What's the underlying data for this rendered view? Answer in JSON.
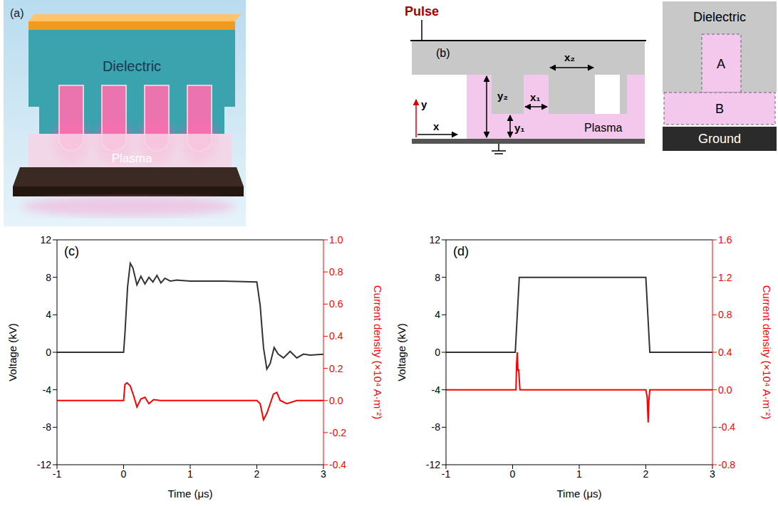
{
  "panels": {
    "a": {
      "label": "(a)",
      "body": "Dielectric",
      "glow": "Plasma"
    },
    "b": {
      "label": "(b)",
      "pulse": "Pulse",
      "arrow_x": "x",
      "arrow_y": "y",
      "y2": "y₂",
      "y1": "y₁",
      "x1": "x₁",
      "x2": "x₂",
      "region": "Plasma",
      "inset": {
        "top": "Dielectric",
        "upper": "A",
        "lower": "B",
        "bottom": "Ground"
      }
    }
  },
  "chart_data": [
    {
      "type": "line",
      "label": "(c)",
      "x_label": "Time (μs)",
      "y_label": "Voltage (kV)",
      "y2_label": "Current density  (×10⁴ A·m⁻²)",
      "xlim": [
        -1,
        3
      ],
      "xticks": [
        -1,
        0,
        1,
        2,
        3
      ],
      "ylim": [
        -12,
        12
      ],
      "yticks": [
        -12,
        -8,
        -4,
        0,
        4,
        8,
        12
      ],
      "y2lim": [
        -0.4,
        1.0
      ],
      "y2ticks": [
        -0.4,
        -0.2,
        {
          "value": 0,
          "label": "0.0"
        },
        0.2,
        0.4,
        0.6,
        0.8,
        {
          "value": 1.0,
          "label": "1.0"
        }
      ],
      "series": [
        {
          "color": "#333333",
          "x": [
            -1,
            -0.5,
            0,
            0.02,
            0.06,
            0.1,
            0.14,
            0.2,
            0.26,
            0.32,
            0.38,
            0.44,
            0.5,
            0.56,
            0.62,
            0.7,
            0.8,
            1.0,
            1.5,
            2.0,
            2.05,
            2.1,
            2.15,
            2.2,
            2.26,
            2.32,
            2.4,
            2.5,
            2.6,
            2.7,
            2.8,
            3.0
          ],
          "values": [
            0,
            0,
            0,
            2,
            7,
            9.5,
            9.0,
            7.2,
            8.1,
            7.3,
            8.0,
            7.5,
            8.2,
            7.4,
            7.9,
            7.6,
            7.7,
            7.6,
            7.6,
            7.5,
            5.0,
            0.5,
            -1.8,
            -1.2,
            0.5,
            -0.2,
            -0.6,
            0.1,
            -0.6,
            -0.2,
            -0.3,
            -0.2
          ]
        },
        {
          "color": "#ff0000",
          "axis": "y2",
          "x": [
            -1,
            0,
            0.02,
            0.05,
            0.1,
            0.15,
            0.2,
            0.26,
            0.32,
            0.38,
            0.45,
            0.55,
            0.7,
            2.0,
            2.05,
            2.1,
            2.15,
            2.2,
            2.25,
            2.3,
            2.35,
            2.45,
            2.6,
            3.0
          ],
          "values": [
            0,
            0,
            0.1,
            0.11,
            0.09,
            0.03,
            -0.04,
            0.01,
            0.02,
            -0.02,
            0.005,
            0,
            0,
            0,
            -0.02,
            -0.12,
            -0.08,
            -0.02,
            0.04,
            0.05,
            0.0,
            -0.02,
            0,
            0
          ]
        }
      ]
    },
    {
      "type": "line",
      "label": "(d)",
      "x_label": "Time (μs)",
      "y_label": "Voltage (kV)",
      "y2_label": "Current density  (×10⁴ A·m⁻²)",
      "xlim": [
        -1,
        3
      ],
      "xticks": [
        -1,
        0,
        1,
        2,
        3
      ],
      "ylim": [
        -12,
        12
      ],
      "yticks": [
        -12,
        -8,
        -4,
        0,
        4,
        8,
        12
      ],
      "y2lim": [
        -0.8,
        1.6
      ],
      "y2ticks": [
        -0.8,
        -0.4,
        {
          "value": 0,
          "label": "0.0"
        },
        0.4,
        0.8,
        1.2,
        1.6
      ],
      "series": [
        {
          "color": "#333333",
          "x": [
            -1,
            0.04,
            0.1,
            2.0,
            2.06,
            3
          ],
          "values": [
            0,
            0,
            8,
            8,
            0,
            0
          ]
        },
        {
          "color": "#ff0000",
          "axis": "y2",
          "x": [
            -1,
            0.05,
            0.06,
            0.07,
            0.08,
            0.09,
            0.11,
            2.0,
            2.02,
            2.035,
            2.045,
            2.06,
            3
          ],
          "values": [
            0,
            0,
            0.28,
            0.4,
            0.2,
            0.22,
            0,
            0,
            -0.08,
            -0.35,
            -0.12,
            0,
            0
          ]
        }
      ]
    }
  ]
}
